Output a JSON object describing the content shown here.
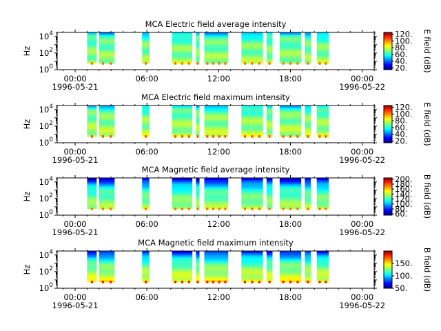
{
  "chart_data": [
    {
      "type": "heatmap",
      "title": "MCA  Electric field average intensity",
      "ylabel": "Hz",
      "colorbar_label": "E field (dB)",
      "colorbar_range": [
        15,
        125
      ],
      "colorbar_ticks": [
        "20.",
        "40.",
        "60.",
        "80.",
        "100.",
        "120."
      ],
      "colorbar_tick_values": [
        20,
        40,
        60,
        80,
        100,
        120
      ],
      "yscale": "log",
      "ylim": [
        1,
        30000
      ],
      "ytick_labels": [
        {
          "base": "10",
          "exp": "0",
          "value": 1
        },
        {
          "base": "10",
          "exp": "2",
          "value": 100
        },
        {
          "base": "10",
          "exp": "4",
          "value": 10000
        }
      ],
      "x_range_hours": [
        -1.5,
        25
      ],
      "xtick_labels": [
        "00:00",
        "06:00",
        "12:00",
        "18:00",
        "00:00"
      ],
      "xtick_hours": [
        0,
        6,
        12,
        18,
        24
      ],
      "date_labels": [
        "1996-05-21",
        "1996-05-22"
      ],
      "data_intervals_hours": [
        [
          1.0,
          1.8
        ],
        [
          2.0,
          3.3
        ],
        [
          5.6,
          6.2
        ],
        [
          8.1,
          9.8
        ],
        [
          10.1,
          10.4
        ],
        [
          10.8,
          12.8
        ],
        [
          13.9,
          15.7
        ],
        [
          16.0,
          16.5
        ],
        [
          17.1,
          18.9
        ],
        [
          19.2,
          19.7
        ],
        [
          20.2,
          21.2
        ]
      ],
      "color_profile": [
        [
          1,
          95
        ],
        [
          3,
          85
        ],
        [
          10,
          72
        ],
        [
          100,
          70
        ],
        [
          1000,
          68
        ],
        [
          10000,
          62
        ],
        [
          30000,
          45
        ]
      ]
    },
    {
      "type": "heatmap",
      "title": "MCA  Electric field maximum intensity",
      "ylabel": "Hz",
      "colorbar_label": "E field (dB)",
      "colorbar_range": [
        15,
        125
      ],
      "colorbar_ticks": [
        "20.",
        "40.",
        "60.",
        "80.",
        "100.",
        "120."
      ],
      "colorbar_tick_values": [
        20,
        40,
        60,
        80,
        100,
        120
      ],
      "yscale": "log",
      "ylim": [
        1,
        30000
      ],
      "ytick_labels": [
        {
          "base": "10",
          "exp": "0",
          "value": 1
        },
        {
          "base": "10",
          "exp": "2",
          "value": 100
        },
        {
          "base": "10",
          "exp": "4",
          "value": 10000
        }
      ],
      "x_range_hours": [
        -1.5,
        25
      ],
      "xtick_labels": [
        "00:00",
        "06:00",
        "12:00",
        "18:00",
        "00:00"
      ],
      "xtick_hours": [
        0,
        6,
        12,
        18,
        24
      ],
      "date_labels": [
        "1996-05-21",
        "1996-05-22"
      ],
      "data_intervals_hours": [
        [
          1.0,
          1.8
        ],
        [
          2.0,
          3.3
        ],
        [
          5.6,
          6.2
        ],
        [
          8.1,
          9.8
        ],
        [
          10.1,
          10.4
        ],
        [
          10.8,
          12.8
        ],
        [
          13.9,
          15.7
        ],
        [
          16.0,
          16.5
        ],
        [
          17.1,
          18.9
        ],
        [
          19.2,
          19.7
        ],
        [
          20.2,
          21.2
        ]
      ],
      "color_profile": [
        [
          1,
          98
        ],
        [
          3,
          88
        ],
        [
          10,
          75
        ],
        [
          100,
          72
        ],
        [
          1000,
          70
        ],
        [
          10000,
          64
        ],
        [
          30000,
          48
        ]
      ]
    },
    {
      "type": "heatmap",
      "title": "MCA  Magnetic field average intensity",
      "ylabel": "Hz",
      "colorbar_label": "B field (dB)",
      "colorbar_range": [
        55,
        205
      ],
      "colorbar_ticks": [
        "60.",
        "80.",
        "100.",
        "120.",
        "140.",
        "160.",
        "180.",
        "200."
      ],
      "colorbar_tick_values": [
        60,
        80,
        100,
        120,
        140,
        160,
        180,
        200
      ],
      "yscale": "log",
      "ylim": [
        1,
        30000
      ],
      "ytick_labels": [
        {
          "base": "10",
          "exp": "0",
          "value": 1
        },
        {
          "base": "10",
          "exp": "2",
          "value": 100
        },
        {
          "base": "10",
          "exp": "4",
          "value": 10000
        }
      ],
      "x_range_hours": [
        -1.5,
        25
      ],
      "xtick_labels": [
        "00:00",
        "06:00",
        "12:00",
        "18:00",
        "00:00"
      ],
      "xtick_hours": [
        0,
        6,
        12,
        18,
        24
      ],
      "date_labels": [
        "1996-05-21",
        "1996-05-22"
      ],
      "data_intervals_hours": [
        [
          1.0,
          1.8
        ],
        [
          2.0,
          3.3
        ],
        [
          5.6,
          6.2
        ],
        [
          8.1,
          9.8
        ],
        [
          10.1,
          10.4
        ],
        [
          10.8,
          12.8
        ],
        [
          13.9,
          15.7
        ],
        [
          16.0,
          16.5
        ],
        [
          17.1,
          18.9
        ],
        [
          19.2,
          19.7
        ],
        [
          20.2,
          21.2
        ]
      ],
      "color_profile": [
        [
          1,
          170
        ],
        [
          3,
          150
        ],
        [
          10,
          135
        ],
        [
          100,
          128
        ],
        [
          1000,
          118
        ],
        [
          5000,
          100
        ],
        [
          30000,
          65
        ]
      ]
    },
    {
      "type": "heatmap",
      "title": "MCA  Magnetic field maximum intensity",
      "ylabel": "Hz",
      "colorbar_label": "B field (dB)",
      "colorbar_range": [
        50,
        200
      ],
      "colorbar_ticks": [
        "50.",
        "100.",
        "150."
      ],
      "colorbar_tick_values": [
        50,
        100,
        150
      ],
      "yscale": "log",
      "ylim": [
        1,
        30000
      ],
      "ytick_labels": [
        {
          "base": "10",
          "exp": "0",
          "value": 1
        },
        {
          "base": "10",
          "exp": "2",
          "value": 100
        },
        {
          "base": "10",
          "exp": "4",
          "value": 10000
        }
      ],
      "x_range_hours": [
        -1.5,
        25
      ],
      "xtick_labels": [
        "00:00",
        "06:00",
        "12:00",
        "18:00",
        "00:00"
      ],
      "xtick_hours": [
        0,
        6,
        12,
        18,
        24
      ],
      "date_labels": [
        "1996-05-21",
        "1996-05-22"
      ],
      "data_intervals_hours": [
        [
          1.0,
          1.8
        ],
        [
          2.0,
          3.3
        ],
        [
          5.6,
          6.2
        ],
        [
          8.1,
          9.8
        ],
        [
          10.1,
          10.4
        ],
        [
          10.8,
          12.8
        ],
        [
          13.9,
          15.7
        ],
        [
          16.0,
          16.5
        ],
        [
          17.1,
          18.9
        ],
        [
          19.2,
          19.7
        ],
        [
          20.2,
          21.2
        ]
      ],
      "color_profile": [
        [
          1,
          180
        ],
        [
          3,
          158
        ],
        [
          10,
          140
        ],
        [
          100,
          130
        ],
        [
          1000,
          118
        ],
        [
          5000,
          100
        ],
        [
          30000,
          70
        ]
      ]
    }
  ]
}
